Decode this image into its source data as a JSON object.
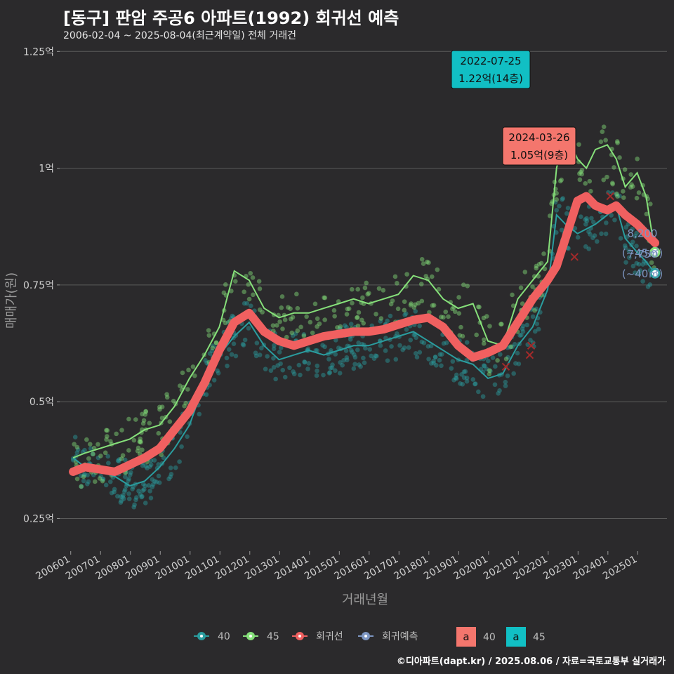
{
  "title": "[동구] 판암 주공6 아파트(1992) 회귀선 예측",
  "subtitle": "2006-02-04 ~ 2025-08-04(최근계약일) 전체 거래건",
  "caption": "©디아파트(dapt.kr) / 2025.08.06 / 자료=국토교통부 실거래가",
  "colors": {
    "s40": "#2a9d9f",
    "s45": "#86e07a",
    "regression": "#f06060",
    "forecast": "#7d96c2",
    "badge40": "#f4766d",
    "badge45": "#11bfc4",
    "background": "#2b2a2c",
    "grid": "#5a5a5a"
  },
  "chart_data": {
    "type": "line",
    "xlabel": "거래년월",
    "ylabel": "매매가(원)",
    "ylim": [
      0.18,
      1.27
    ],
    "y_ticks": [
      {
        "value": 0.25,
        "label": "0.25억"
      },
      {
        "value": 0.5,
        "label": "0.5억"
      },
      {
        "value": 0.75,
        "label": "0.75억"
      },
      {
        "value": 1.0,
        "label": "1억"
      },
      {
        "value": 1.25,
        "label": "1.25억"
      }
    ],
    "x_ticks": [
      "200601",
      "200701",
      "200801",
      "200901",
      "201001",
      "201101",
      "201201",
      "201301",
      "201401",
      "201501",
      "201601",
      "201701",
      "201801",
      "201901",
      "202001",
      "202101",
      "202201",
      "202301",
      "202401",
      "202501"
    ],
    "x_tick_years": [
      2006,
      2007,
      2008,
      2009,
      2010,
      2011,
      2012,
      2013,
      2014,
      2015,
      2016,
      2017,
      2018,
      2019,
      2020,
      2021,
      2022,
      2023,
      2024,
      2025
    ],
    "series": [
      {
        "name": "40",
        "x": [
          2006.1,
          2006.5,
          2007.0,
          2007.5,
          2008.0,
          2008.5,
          2009.0,
          2009.5,
          2010.0,
          2010.5,
          2011.0,
          2011.5,
          2012.0,
          2012.5,
          2013.0,
          2013.5,
          2014.0,
          2014.5,
          2015.0,
          2015.5,
          2016.0,
          2016.5,
          2017.0,
          2017.5,
          2018.0,
          2018.5,
          2019.0,
          2019.5,
          2020.0,
          2020.5,
          2021.0,
          2021.5,
          2022.0,
          2022.3,
          2022.6,
          2023.0,
          2023.3,
          2023.6,
          2024.0,
          2024.3,
          2024.6,
          2025.0,
          2025.3,
          2025.6
        ],
        "values": [
          0.38,
          0.36,
          0.35,
          0.34,
          0.32,
          0.33,
          0.36,
          0.4,
          0.45,
          0.54,
          0.6,
          0.64,
          0.67,
          0.62,
          0.59,
          0.6,
          0.61,
          0.6,
          0.61,
          0.62,
          0.62,
          0.63,
          0.64,
          0.65,
          0.63,
          0.61,
          0.59,
          0.58,
          0.55,
          0.56,
          0.62,
          0.66,
          0.74,
          0.9,
          0.88,
          0.86,
          0.87,
          0.88,
          0.9,
          0.92,
          0.85,
          0.82,
          0.8,
          0.775
        ]
      },
      {
        "name": "45",
        "x": [
          2006.1,
          2006.5,
          2007.0,
          2007.5,
          2008.0,
          2008.5,
          2009.0,
          2009.5,
          2010.0,
          2010.5,
          2011.0,
          2011.5,
          2012.0,
          2012.5,
          2013.0,
          2013.5,
          2014.0,
          2014.5,
          2015.0,
          2015.5,
          2016.0,
          2016.5,
          2017.0,
          2017.5,
          2018.0,
          2018.5,
          2019.0,
          2019.5,
          2020.0,
          2020.5,
          2021.0,
          2021.5,
          2022.0,
          2022.3,
          2022.6,
          2023.0,
          2023.3,
          2023.6,
          2024.0,
          2024.3,
          2024.6,
          2025.0,
          2025.3,
          2025.6
        ],
        "values": [
          0.38,
          0.39,
          0.4,
          0.41,
          0.42,
          0.44,
          0.45,
          0.49,
          0.55,
          0.6,
          0.66,
          0.78,
          0.76,
          0.7,
          0.68,
          0.69,
          0.69,
          0.7,
          0.71,
          0.72,
          0.71,
          0.72,
          0.73,
          0.77,
          0.76,
          0.72,
          0.7,
          0.71,
          0.63,
          0.62,
          0.72,
          0.76,
          0.8,
          1.0,
          1.08,
          1.02,
          1.0,
          1.04,
          1.05,
          1.02,
          0.96,
          0.99,
          0.94,
          0.82
        ]
      },
      {
        "name": "회귀선",
        "x": [
          2006.1,
          2006.5,
          2007.0,
          2007.5,
          2008.0,
          2008.5,
          2009.0,
          2009.5,
          2010.0,
          2010.5,
          2011.0,
          2011.5,
          2012.0,
          2012.5,
          2013.0,
          2013.5,
          2014.0,
          2014.5,
          2015.0,
          2015.5,
          2016.0,
          2016.5,
          2017.0,
          2017.5,
          2018.0,
          2018.5,
          2019.0,
          2019.5,
          2020.0,
          2020.5,
          2021.0,
          2021.5,
          2022.0,
          2022.3,
          2022.6,
          2023.0,
          2023.3,
          2023.6,
          2024.0,
          2024.3,
          2024.6,
          2025.0,
          2025.3,
          2025.6
        ],
        "values": [
          0.35,
          0.36,
          0.355,
          0.35,
          0.365,
          0.38,
          0.4,
          0.44,
          0.48,
          0.54,
          0.61,
          0.67,
          0.69,
          0.65,
          0.63,
          0.62,
          0.63,
          0.64,
          0.645,
          0.65,
          0.65,
          0.655,
          0.665,
          0.675,
          0.68,
          0.66,
          0.62,
          0.595,
          0.605,
          0.62,
          0.67,
          0.72,
          0.76,
          0.79,
          0.85,
          0.93,
          0.94,
          0.92,
          0.91,
          0.92,
          0.9,
          0.88,
          0.86,
          0.84
        ]
      },
      {
        "name": "회귀예측",
        "x": [
          2025.6
        ],
        "values": [
          0.82
        ]
      }
    ],
    "annotations": [
      {
        "date": "2022-07-25",
        "value": "1.22억(14층)",
        "series": "45",
        "x": 2022.56,
        "y": 1.22
      },
      {
        "date": "2024-03-26",
        "value": "1.05억(9층)",
        "series": "40",
        "x": 2024.24,
        "y": 1.05
      }
    ],
    "end_labels": [
      {
        "value": "8,200",
        "area": "(~45㎡)",
        "series": "45",
        "x": 2025.6,
        "y": 0.82
      },
      {
        "value": "7,750",
        "area": "(~40㎡)",
        "series": "40",
        "x": 2025.6,
        "y": 0.775
      }
    ],
    "cancelled_marks": [
      {
        "x": 2020.6,
        "y": 0.575
      },
      {
        "x": 2021.4,
        "y": 0.6
      },
      {
        "x": 2021.45,
        "y": 0.62
      },
      {
        "x": 2022.9,
        "y": 0.81
      },
      {
        "x": 2024.1,
        "y": 0.94
      }
    ],
    "legend": {
      "placement": "bottom",
      "line_items": [
        "40",
        "45",
        "회귀선",
        "회귀예측"
      ],
      "badge_items": [
        {
          "glyph": "a",
          "label": "40"
        },
        {
          "glyph": "a",
          "label": "45"
        }
      ]
    }
  }
}
